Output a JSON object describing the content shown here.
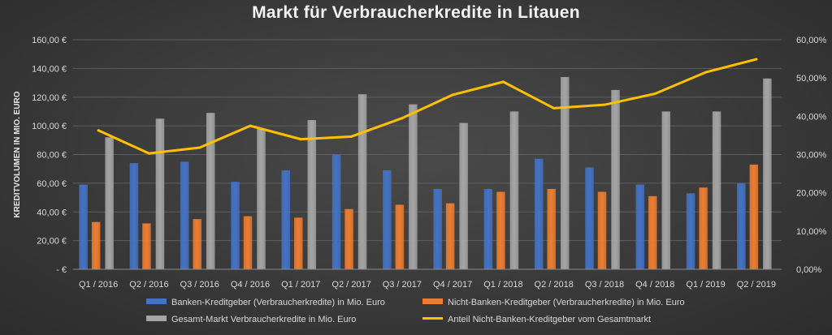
{
  "chart_data": {
    "type": "bar",
    "title": "Markt für Verbraucherkredite in Litauen",
    "ylabel": "KREDITVOLUMEN IN MIO. EURO",
    "y_ticks": [
      "-  €",
      "20,00 €",
      "40,00 €",
      "60,00 €",
      "80,00 €",
      "100,00 €",
      "120,00 €",
      "140,00 €",
      "160,00 €"
    ],
    "y2_ticks": [
      "0,00%",
      "10,00%",
      "20,00%",
      "30,00%",
      "40,00%",
      "50,00%",
      "60,00%"
    ],
    "ylim": [
      0,
      160
    ],
    "y2lim": [
      0,
      60
    ],
    "categories": [
      "Q1 / 2016",
      "Q2 / 2016",
      "Q3 / 2016",
      "Q4 / 2016",
      "Q1 / 2017",
      "Q2 / 2017",
      "Q3 / 2017",
      "Q4 / 2017",
      "Q1 / 2018",
      "Q2 / 2018",
      "Q3 / 2018",
      "Q4 / 2018",
      "Q1 / 2019",
      "Q2 / 2019"
    ],
    "series": [
      {
        "name": "Banken-Kreditgeber (Verbraucherkredite) in Mio. Euro",
        "kind": "bar",
        "color": "#4472c4",
        "values": [
          59,
          74,
          75,
          61,
          69,
          80,
          69,
          56,
          56,
          77,
          71,
          59,
          53,
          60
        ]
      },
      {
        "name": "Nicht-Banken-Kreditgeber (Verbraucherkredite) in Mio. Euro",
        "kind": "bar",
        "color": "#ed7d31",
        "values": [
          33,
          32,
          35,
          37,
          36,
          42,
          45,
          46,
          54,
          56,
          54,
          51,
          57,
          73
        ]
      },
      {
        "name": "Gesamt-Markt Verbraucherkredite in Mio. Euro",
        "kind": "bar",
        "color": "#a5a5a5",
        "values": [
          92,
          105,
          109,
          98,
          104,
          122,
          115,
          102,
          110,
          134,
          125,
          110,
          110,
          133
        ]
      },
      {
        "name": "Anteil Nicht-Banken-Kreditgeber vom Gesamtmarkt",
        "kind": "line",
        "axis": "right",
        "color": "#ffc000",
        "values": [
          36.3,
          30.3,
          31.8,
          37.5,
          34.0,
          34.7,
          39.5,
          45.6,
          49.0,
          42.1,
          43.0,
          45.9,
          51.5,
          54.9
        ]
      }
    ],
    "grid": true,
    "legend": "bottom"
  }
}
